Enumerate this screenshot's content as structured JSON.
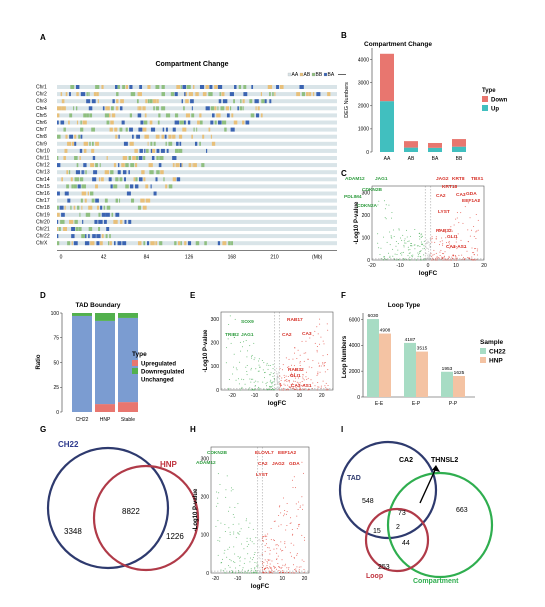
{
  "panels": {
    "A": "A",
    "B": "B",
    "C": "C",
    "D": "D",
    "E": "E",
    "F": "F",
    "G": "G",
    "H": "H",
    "I": "I"
  },
  "compartment": {
    "title": "Compartment Change",
    "legend": [
      "AA",
      "AB",
      "BB",
      "BA"
    ],
    "chromosomes": [
      "Chr1",
      "Chr2",
      "Chr3",
      "Chr4",
      "Chr5",
      "Chr6",
      "Chr7",
      "Chr8",
      "Chr9",
      "Chr10",
      "Chr11",
      "Chr12",
      "Chr13",
      "Chr14",
      "Chr15",
      "Chr16",
      "Chr17",
      "Chr18",
      "Chr19",
      "Chr20",
      "Chr21",
      "Chr22",
      "ChrX"
    ],
    "x_ticks": [
      "0",
      "42",
      "84",
      "126",
      "168",
      "210",
      "(Mb)"
    ],
    "colors": {
      "AA": "#d9e4e8",
      "AB": "#e8c07a",
      "BB": "#8fbf80",
      "BA": "#3b64b2"
    }
  },
  "chart_data": [
    {
      "type": "bar",
      "title": "Compartment Change",
      "categories": [
        "AA",
        "AB",
        "BA",
        "BB"
      ],
      "series": [
        {
          "name": "Down",
          "values": [
            2050,
            280,
            210,
            330
          ]
        },
        {
          "name": "Up",
          "values": [
            2200,
            190,
            180,
            230
          ]
        }
      ],
      "xlabel": "",
      "ylabel": "DEG Numbers",
      "ylim": [
        0,
        4500
      ],
      "yticks": [
        0,
        1000,
        2000,
        3000,
        4000
      ],
      "legend_title": "Type",
      "colors": {
        "Down": "#e8766f",
        "Up": "#41bfbf"
      }
    },
    {
      "type": "bar",
      "title": "TAD Boundary",
      "categories": [
        "CH22",
        "HNP",
        "Stable"
      ],
      "series": [
        {
          "name": "Upregulated",
          "values": [
            0,
            8,
            10
          ]
        },
        {
          "name": "Unchanged",
          "values": [
            97,
            84,
            85
          ]
        },
        {
          "name": "Downregulated",
          "values": [
            3,
            8,
            5
          ]
        }
      ],
      "ylabel": "Ratio",
      "ylim": [
        0,
        100
      ],
      "yticks": [
        0,
        25,
        50,
        75,
        100
      ],
      "legend_title": "Type",
      "legend_order": [
        "Upregulated",
        "Downregulated",
        "Unchanged"
      ],
      "colors": {
        "Upregulated": "#e8766f",
        "Downregulated": "#52b04d",
        "Unchanged": "#7b9cd1"
      }
    },
    {
      "type": "bar",
      "title": "Loop Type",
      "categories": [
        "E-E",
        "E-P",
        "P-P"
      ],
      "series": [
        {
          "name": "CH22",
          "values": [
            6030,
            4187,
            1953
          ]
        },
        {
          "name": "HNP",
          "values": [
            4908,
            3515,
            1625
          ]
        }
      ],
      "ylabel": "Loop Numbers",
      "ylim": [
        0,
        6500
      ],
      "yticks": [
        0,
        2000,
        4000,
        6000
      ],
      "legend_title": "Sample",
      "colors": {
        "CH22": "#a7dcc4",
        "HNP": "#f4c3a3"
      }
    },
    {
      "type": "scatter",
      "xlabel": "logFC",
      "ylabel": "-Log10 P-value",
      "xlim": [
        -20,
        20
      ],
      "xticks": [
        -20,
        -10,
        0,
        10,
        20
      ],
      "ylim": [
        0,
        330
      ],
      "yticks": [
        0,
        100,
        200,
        300
      ],
      "labels_left": [
        "ADAM12",
        "JAG1",
        "CDKN2B",
        "PDLIM4",
        "CDKN2A"
      ],
      "labels_right": [
        "JAG2",
        "KRT8",
        "TBX1",
        "KRT18",
        "GDA",
        "CA2",
        "CA3",
        "EEF1A2",
        "LYST",
        "RAB32",
        "GLI1",
        "CA3-AS1"
      ]
    },
    {
      "type": "scatter",
      "xlabel": "logFC",
      "ylabel": "-Log10 P-value",
      "xlim": [
        -25,
        25
      ],
      "xticks": [
        -20,
        -10,
        0,
        10,
        20
      ],
      "ylim": [
        0,
        330
      ],
      "yticks": [
        0,
        100,
        200,
        300
      ],
      "labels_left": [
        "SOX9",
        "TRIB2",
        "JAG1"
      ],
      "labels_right": [
        "RAB17",
        "CA2",
        "CA3",
        "RAB32",
        "GLI1",
        "CA3-AS1"
      ]
    },
    {
      "type": "scatter",
      "xlabel": "logFC",
      "ylabel": "-Log10 P-value",
      "xlim": [
        -22,
        22
      ],
      "xticks": [
        -20,
        -10,
        0,
        10,
        20
      ],
      "ylim": [
        0,
        330
      ],
      "yticks": [
        0,
        100,
        200,
        300
      ],
      "labels_left": [
        "CDKN2B",
        "ADAM12"
      ],
      "labels_right": [
        "ELOVL7",
        "EEF1A2",
        "CA2",
        "JAG2",
        "GDA",
        "LYST"
      ]
    }
  ],
  "venn_g": {
    "left": "CH22",
    "right": "HNP",
    "only_left": "3348",
    "both": "8822",
    "only_right": "1226"
  },
  "venn_i": {
    "tad": "TAD",
    "loop": "Loop",
    "compartment": "Compartment",
    "callout_1": "CA2",
    "callout_2": "THNSL2",
    "n_tad": "548",
    "n_tad_comp": "73",
    "n_tad_loop": "15",
    "n_all": "2",
    "n_loop_comp": "44",
    "n_loop": "253",
    "n_comp": "663"
  }
}
